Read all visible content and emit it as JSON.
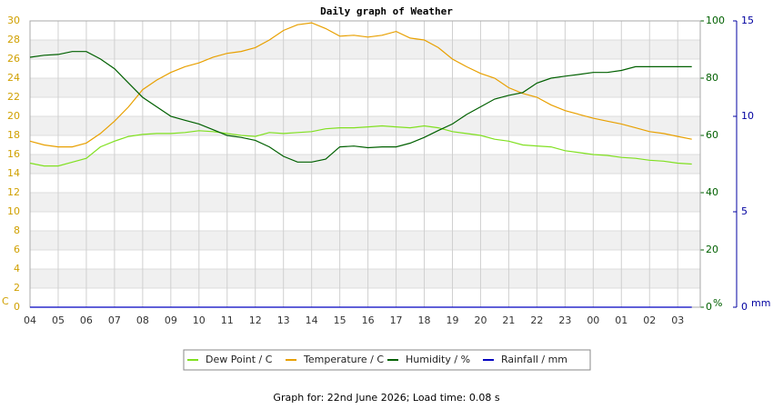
{
  "chart_data": {
    "type": "line",
    "title": "Daily graph of Weather",
    "footer": "Graph for: 22nd June 2026; Load time: 0.08 s",
    "x": [
      0,
      0.5,
      1,
      1.5,
      2,
      2.5,
      3,
      3.5,
      4,
      4.5,
      5,
      5.5,
      6,
      6.5,
      7,
      7.5,
      8,
      8.5,
      9,
      9.5,
      10,
      10.5,
      11,
      11.5,
      12,
      12.5,
      13,
      13.5,
      14,
      14.5,
      15,
      15.5,
      16,
      16.5,
      17,
      17.5,
      18,
      18.5,
      19,
      19.5,
      20,
      20.5,
      21,
      21.5,
      22,
      22.5,
      23,
      23.5
    ],
    "xlim": [
      0,
      23.8
    ],
    "xticks": [
      {
        "value": 0,
        "label": "04"
      },
      {
        "value": 1,
        "label": "05"
      },
      {
        "value": 2,
        "label": "06"
      },
      {
        "value": 3,
        "label": "07"
      },
      {
        "value": 4,
        "label": "08"
      },
      {
        "value": 5,
        "label": "09"
      },
      {
        "value": 6,
        "label": "10"
      },
      {
        "value": 7,
        "label": "11"
      },
      {
        "value": 8,
        "label": "12"
      },
      {
        "value": 9,
        "label": "13"
      },
      {
        "value": 10,
        "label": "14"
      },
      {
        "value": 11,
        "label": "15"
      },
      {
        "value": 12,
        "label": "16"
      },
      {
        "value": 13,
        "label": "17"
      },
      {
        "value": 14,
        "label": "18"
      },
      {
        "value": 15,
        "label": "19"
      },
      {
        "value": 16,
        "label": "20"
      },
      {
        "value": 17,
        "label": "21"
      },
      {
        "value": 18,
        "label": "22"
      },
      {
        "value": 19,
        "label": "23"
      },
      {
        "value": 20,
        "label": "00"
      },
      {
        "value": 21,
        "label": "01"
      },
      {
        "value": 22,
        "label": "02"
      },
      {
        "value": 23,
        "label": "03"
      }
    ],
    "y_label": "C",
    "ylim": [
      0,
      30
    ],
    "yticks": [
      0,
      2,
      4,
      6,
      8,
      10,
      12,
      14,
      16,
      18,
      20,
      22,
      24,
      26,
      28,
      30
    ],
    "y2_label": "%",
    "y2lim": [
      0,
      100
    ],
    "y2ticks": [
      0,
      20,
      40,
      60,
      80,
      100
    ],
    "y3_label": "mm",
    "y3lim": [
      0,
      15
    ],
    "y3ticks": [
      0,
      5,
      10,
      15
    ],
    "grid": true,
    "series": [
      {
        "name": "Dew Point / C",
        "color": "#80e020",
        "axis": "y",
        "values": [
          15.1,
          14.8,
          14.8,
          15.2,
          15.6,
          16.8,
          17.4,
          17.9,
          18.1,
          18.2,
          18.2,
          18.3,
          18.5,
          18.4,
          18.2,
          18.0,
          17.9,
          18.3,
          18.2,
          18.3,
          18.4,
          18.7,
          18.8,
          18.8,
          18.9,
          19.0,
          18.9,
          18.8,
          19.0,
          18.8,
          18.4,
          18.2,
          18.0,
          17.6,
          17.4,
          17.0,
          16.9,
          16.8,
          16.4,
          16.2,
          16.0,
          15.9,
          15.7,
          15.6,
          15.4,
          15.3,
          15.1,
          15.0
        ]
      },
      {
        "name": "Temperature / C",
        "color": "#e8a000",
        "axis": "y",
        "values": [
          17.4,
          17.0,
          16.8,
          16.8,
          17.2,
          18.2,
          19.5,
          21.0,
          22.8,
          23.8,
          24.6,
          25.2,
          25.6,
          26.2,
          26.6,
          26.8,
          27.2,
          28.0,
          29.0,
          29.6,
          29.8,
          29.2,
          28.4,
          28.5,
          28.3,
          28.5,
          28.9,
          28.2,
          28.0,
          27.2,
          26.0,
          25.2,
          24.5,
          24.0,
          23.0,
          22.4,
          22.0,
          21.2,
          20.6,
          20.2,
          19.8,
          19.5,
          19.2,
          18.8,
          18.4,
          18.2,
          17.9,
          17.6
        ]
      },
      {
        "name": "Humidity / %",
        "color": "#006000",
        "axis": "y2",
        "values": [
          87.3,
          88,
          88.3,
          89.3,
          89.3,
          86.7,
          83.3,
          78.3,
          73.3,
          70,
          66.7,
          65.3,
          64,
          62,
          60,
          59.3,
          58.3,
          56,
          52.7,
          50.7,
          50.7,
          51.7,
          56,
          56.3,
          55.7,
          56,
          56,
          57.3,
          59.3,
          61.7,
          64,
          67.3,
          70,
          72.7,
          74,
          75,
          78.3,
          80,
          80.7,
          81.3,
          82,
          82,
          82.7,
          84,
          84,
          84,
          84,
          84
        ]
      },
      {
        "name": "Rainfall / mm",
        "color": "#0000c0",
        "axis": "y3",
        "values": [
          0,
          0,
          0,
          0,
          0,
          0,
          0,
          0,
          0,
          0,
          0,
          0,
          0,
          0,
          0,
          0,
          0,
          0,
          0,
          0,
          0,
          0,
          0,
          0,
          0,
          0,
          0,
          0,
          0,
          0,
          0,
          0,
          0,
          0,
          0,
          0,
          0,
          0,
          0,
          0,
          0,
          0,
          0,
          0,
          0,
          0,
          0,
          0
        ]
      }
    ]
  }
}
